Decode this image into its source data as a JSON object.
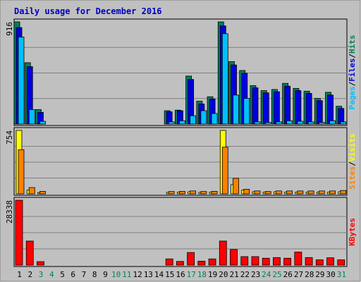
{
  "chart_data": {
    "type": "bar",
    "title": "Daily usage for December 2016",
    "days": [
      "1",
      "2",
      "3",
      "4",
      "5",
      "6",
      "7",
      "8",
      "9",
      "10",
      "11",
      "12",
      "13",
      "14",
      "15",
      "16",
      "17",
      "18",
      "19",
      "20",
      "21",
      "22",
      "23",
      "24",
      "25",
      "26",
      "27",
      "28",
      "29",
      "30",
      "31"
    ],
    "weekend_days": [
      "3",
      "4",
      "10",
      "11",
      "17",
      "18",
      "24",
      "25",
      "31"
    ],
    "panels": [
      {
        "id": "hits",
        "ymax_label": "916",
        "ymax": 916,
        "side_labels": [
          "Pages",
          "Files",
          "Hits"
        ],
        "series": [
          {
            "name": "Hits",
            "color": "#00805c",
            "values": [
              916,
              550,
              130,
              0,
              0,
              0,
              0,
              0,
              0,
              0,
              0,
              0,
              0,
              0,
              120,
              125,
              430,
              205,
              245,
              916,
              560,
              480,
              345,
              300,
              310,
              365,
              320,
              295,
              230,
              285,
              160
            ]
          },
          {
            "name": "Files",
            "color": "#0000e0",
            "values": [
              865,
              515,
              105,
              0,
              0,
              0,
              0,
              0,
              0,
              0,
              0,
              0,
              0,
              0,
              110,
              120,
              400,
              180,
              225,
              880,
              530,
              455,
              325,
              280,
              290,
              340,
              300,
              275,
              210,
              260,
              140
            ]
          },
          {
            "name": "Pages",
            "color": "#00c0ff",
            "values": [
              780,
              130,
              25,
              0,
              0,
              0,
              0,
              0,
              0,
              0,
              0,
              0,
              0,
              0,
              20,
              30,
              75,
              120,
              95,
              810,
              260,
              230,
              20,
              15,
              20,
              30,
              25,
              20,
              15,
              30,
              20
            ]
          }
        ]
      },
      {
        "id": "visits",
        "ymax_label": "754",
        "ymax": 754,
        "side_labels": [
          "Sites",
          "Visits"
        ],
        "series": [
          {
            "name": "Visits",
            "color": "#ffff00",
            "values": [
              754,
              45,
              15,
              0,
              0,
              0,
              0,
              0,
              0,
              0,
              0,
              0,
              0,
              0,
              18,
              20,
              25,
              18,
              20,
              754,
              110,
              45,
              25,
              20,
              25,
              20,
              20,
              20,
              20,
              20,
              25
            ]
          },
          {
            "name": "Sites",
            "color": "#ff8000",
            "values": [
              525,
              75,
              30,
              0,
              0,
              0,
              0,
              0,
              0,
              0,
              0,
              0,
              0,
              0,
              28,
              30,
              35,
              28,
              30,
              555,
              185,
              55,
              35,
              28,
              35,
              35,
              35,
              35,
              35,
              35,
              40
            ]
          }
        ]
      },
      {
        "id": "kbytes",
        "ymax_label": "28338",
        "ymax": 28338,
        "side_labels": [
          "KBytes"
        ],
        "series": [
          {
            "name": "KBytes",
            "color": "#ff0000",
            "values": [
              28338,
              10500,
              1500,
              0,
              0,
              0,
              0,
              0,
              0,
              0,
              0,
              0,
              0,
              0,
              2700,
              1600,
              5500,
              1700,
              2700,
              10500,
              6800,
              3700,
              3700,
              3000,
              3300,
              3000,
              5700,
              3300,
              2300,
              3200,
              2300
            ]
          }
        ]
      }
    ]
  }
}
